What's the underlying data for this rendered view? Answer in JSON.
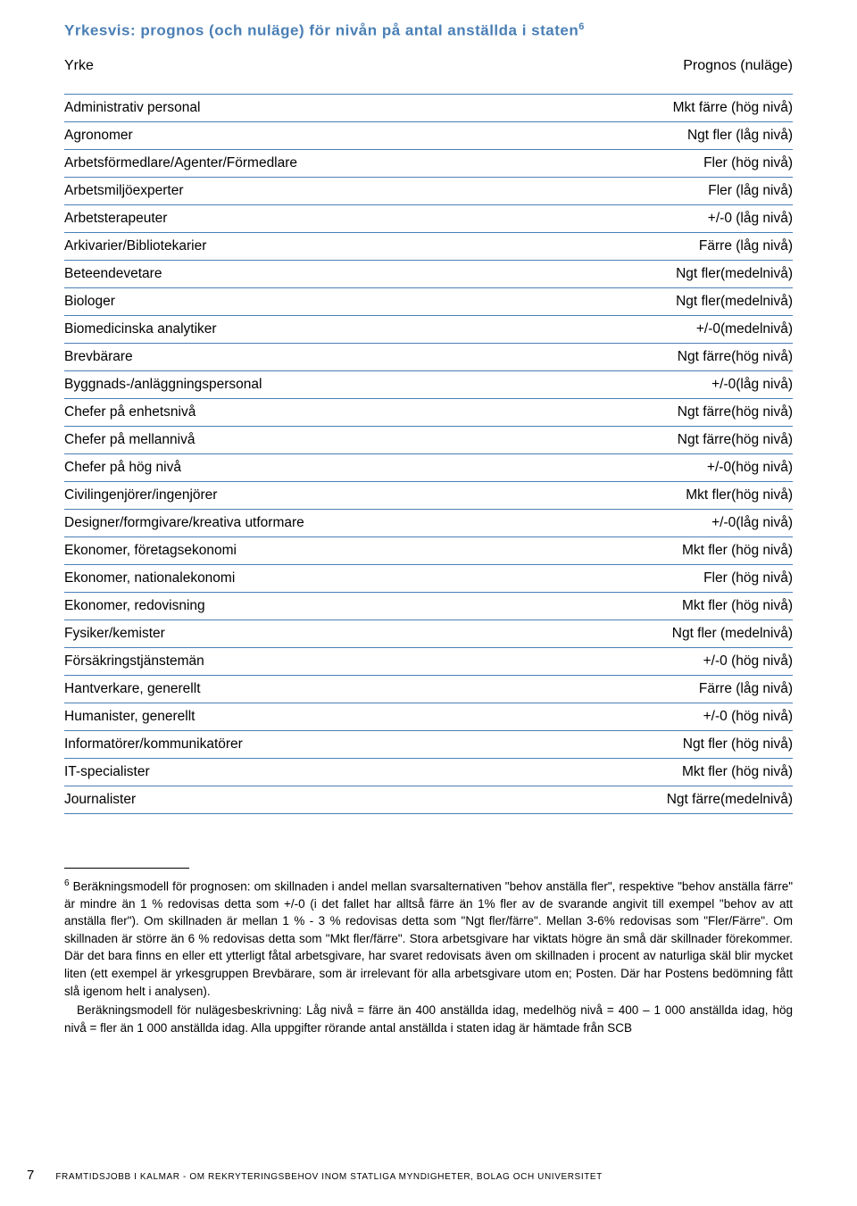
{
  "title_main": "Yrkesvis: prognos (och nuläge) för nivån på antal anställda i staten",
  "title_sup": "6",
  "header": {
    "left": "Yrke",
    "right": "Prognos (nuläge)"
  },
  "rows": [
    {
      "y": "Administrativ personal",
      "p": "Mkt färre (hög nivå)"
    },
    {
      "y": "Agronomer",
      "p": "Ngt fler (låg nivå)"
    },
    {
      "y": "Arbetsförmedlare/Agenter/Förmedlare",
      "p": "Fler (hög nivå)"
    },
    {
      "y": "Arbetsmiljöexperter",
      "p": "Fler (låg nivå)"
    },
    {
      "y": "Arbetsterapeuter",
      "p": "+/-0 (låg nivå)"
    },
    {
      "y": "Arkivarier/Bibliotekarier",
      "p": "Färre (låg nivå)"
    },
    {
      "y": "Beteendevetare",
      "p": "Ngt fler(medelnivå)"
    },
    {
      "y": "Biologer",
      "p": "Ngt fler(medelnivå)"
    },
    {
      "y": "Biomedicinska analytiker",
      "p": "+/-0(medelnivå)"
    },
    {
      "y": "Brevbärare",
      "p": "Ngt färre(hög nivå)"
    },
    {
      "y": "Byggnads-/anläggningspersonal",
      "p": "+/-0(låg nivå)"
    },
    {
      "y": "Chefer på enhetsnivå",
      "p": "Ngt färre(hög nivå)"
    },
    {
      "y": "Chefer på mellannivå",
      "p": "Ngt färre(hög nivå)"
    },
    {
      "y": "Chefer på hög nivå",
      "p": "+/-0(hög nivå)"
    },
    {
      "y": "Civilingenjörer/ingenjörer",
      "p": "Mkt fler(hög nivå)"
    },
    {
      "y": "Designer/formgivare/kreativa utformare",
      "p": "+/-0(låg nivå)"
    },
    {
      "y": "Ekonomer, företagsekonomi",
      "p": "Mkt fler (hög nivå)"
    },
    {
      "y": "Ekonomer, nationalekonomi",
      "p": "Fler (hög nivå)"
    },
    {
      "y": "Ekonomer, redovisning",
      "p": "Mkt fler (hög nivå)"
    },
    {
      "y": "Fysiker/kemister",
      "p": "Ngt fler (medelnivå)"
    },
    {
      "y": "Försäkringstjänstemän",
      "p": "+/-0 (hög nivå)"
    },
    {
      "y": "Hantverkare, generellt",
      "p": "Färre (låg nivå)"
    },
    {
      "y": "Humanister, generellt",
      "p": "+/-0 (hög nivå)"
    },
    {
      "y": "Informatörer/kommunikatörer",
      "p": "Ngt fler (hög nivå)"
    },
    {
      "y": "IT-specialister",
      "p": "Mkt fler (hög nivå)"
    },
    {
      "y": "Journalister",
      "p": "Ngt färre(medelnivå)"
    }
  ],
  "footnote_sup": "6",
  "footnote_p1": " Beräkningsmodell för prognosen: om skillnaden i andel mellan svarsalternativen \"behov anställa fler\", respektive \"behov anställa färre\" är mindre än 1 % redovisas detta som +/-0 (i det fallet har alltså färre än 1% fler av de svarande angivit till exempel \"behov av att anställa fler\"). Om skillnaden är mellan 1 % - 3 % redovisas detta som \"Ngt fler/färre\". Mellan 3-6% redovisas som \"Fler/Färre\". Om skillnaden är större än 6 % redovisas detta som \"Mkt fler/färre\". Stora arbetsgivare har viktats högre än små där skillnader förekommer. Där det bara finns en eller ett ytterligt fåtal arbetsgivare, har svaret redovisats även om skillnaden i procent av naturliga skäl blir mycket liten (ett exempel är yrkesgruppen Brevbärare, som är irrelevant för alla arbetsgivare utom en; Posten. Där har Postens bedömning fått slå igenom helt i analysen).",
  "footnote_p2": "Beräkningsmodell för nulägesbeskrivning: Låg nivå = färre än 400 anställda idag, medelhög nivå = 400 – 1 000 anställda idag, hög nivå = fler än 1 000 anställda idag. Alla uppgifter rörande antal anställda i staten idag är hämtade från SCB",
  "footer": {
    "page": "7",
    "text": "FRAMTIDSJOBB I KALMAR - OM REKRYTERINGSBEHOV INOM STATLIGA MYNDIGHETER, BOLAG OCH UNIVERSITET"
  },
  "colors": {
    "accent": "#4a7fb5",
    "text": "#000000",
    "background": "#ffffff"
  }
}
